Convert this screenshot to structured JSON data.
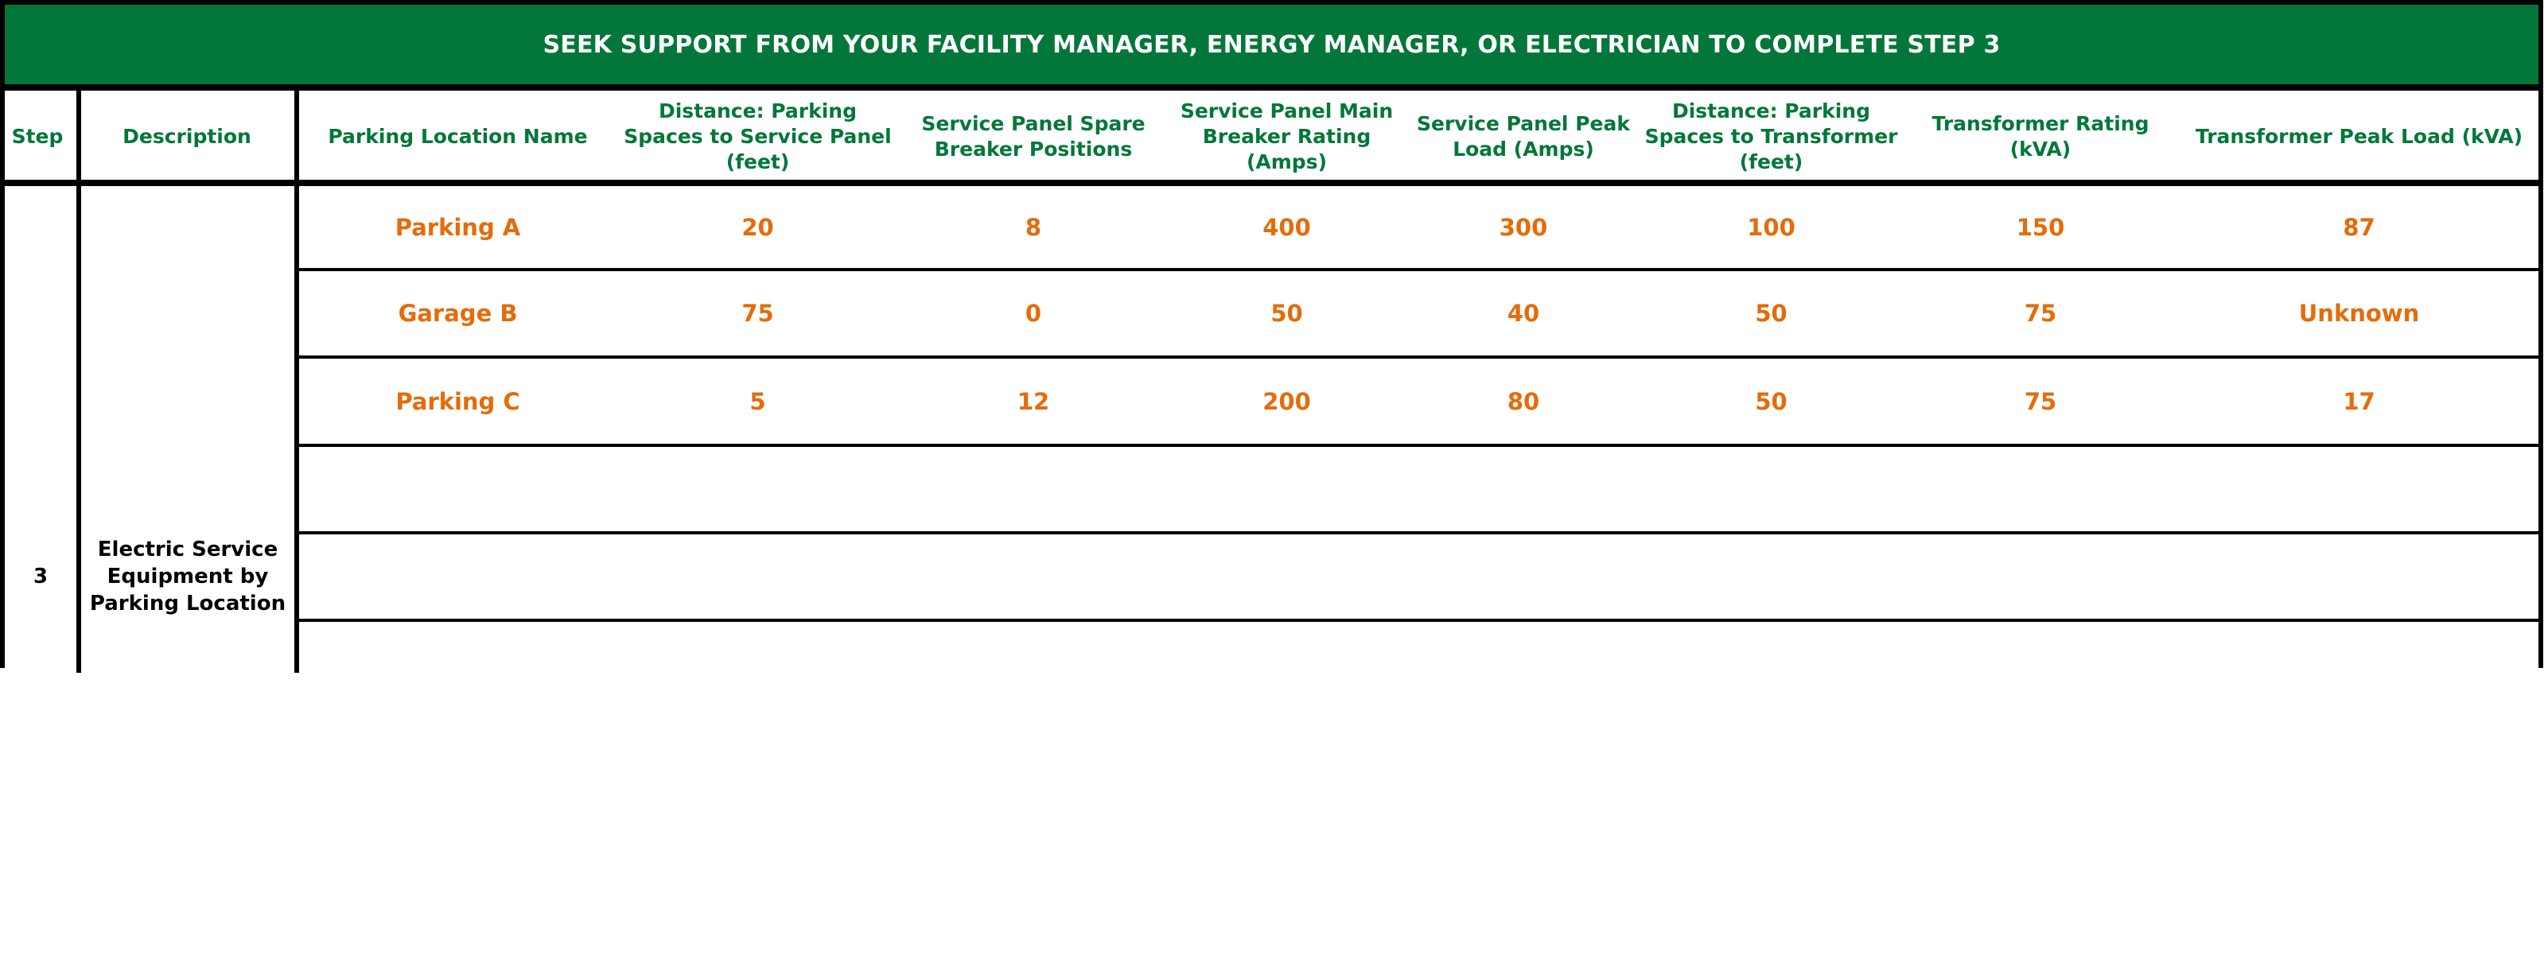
{
  "banner": {
    "text": "SEEK SUPPORT FROM YOUR FACILITY MANAGER, ENERGY MANAGER, OR ELECTRICIAN TO COMPLETE STEP 3"
  },
  "colors": {
    "banner_bg": "#03773A",
    "header_text": "#03773A",
    "value_text": "#E46C0A"
  },
  "table": {
    "columns": [
      "Step",
      "Description",
      "Parking Location Name",
      "Distance: Parking Spaces to Service Panel (feet)",
      "Service Panel Spare Breaker Positions",
      "Service Panel Main Breaker Rating (Amps)",
      "Service Panel Peak Load (Amps)",
      "Distance: Parking Spaces to Transformer (feet)",
      "Transformer Rating (kVA)",
      "Transformer Peak Load (kVA)"
    ],
    "step": "3",
    "description": "Electric Service Equipment by Parking Location",
    "rows": [
      [
        "Parking A",
        "20",
        "8",
        "400",
        "300",
        "100",
        "150",
        "87"
      ],
      [
        "Garage B",
        "75",
        "0",
        "50",
        "40",
        "50",
        "75",
        "Unknown"
      ],
      [
        "Parking C",
        "5",
        "12",
        "200",
        "80",
        "50",
        "75",
        "17"
      ],
      [
        "",
        "",
        "",
        "",
        "",
        "",
        "",
        ""
      ],
      [
        "",
        "",
        "",
        "",
        "",
        "",
        "",
        ""
      ],
      [
        "",
        "",
        "",
        "",
        "",
        "",
        "",
        ""
      ]
    ]
  }
}
